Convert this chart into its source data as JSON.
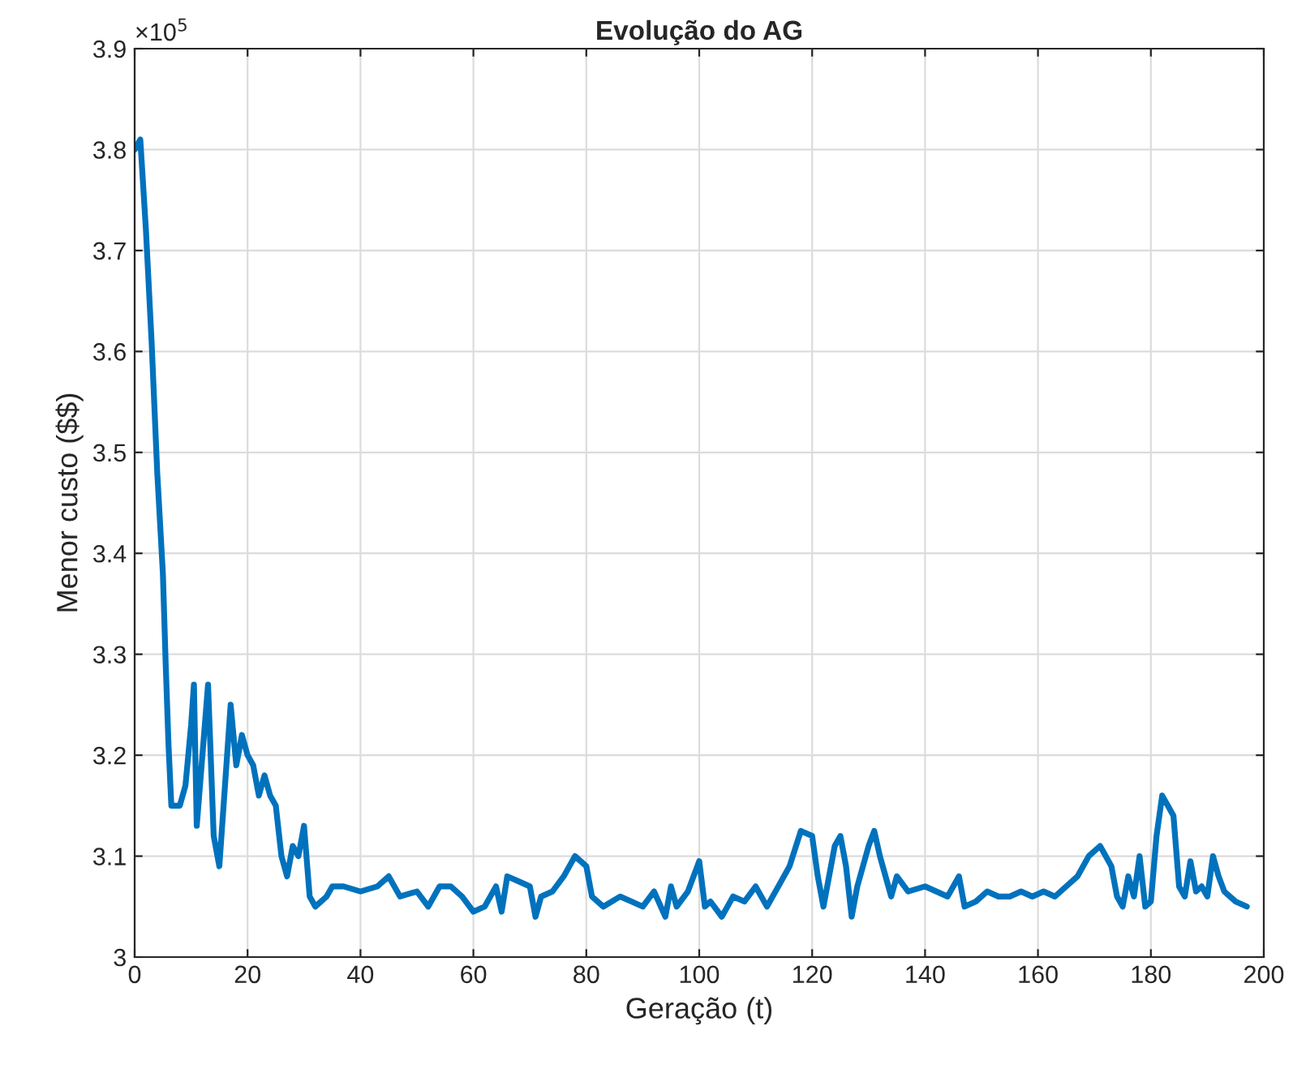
{
  "chart_data": {
    "type": "line",
    "title": "Evolução do AG",
    "xlabel": "Geração (t)",
    "ylabel": "Menor custo ($$)",
    "annotations": [
      "×10$^{5}$"
    ],
    "series": [
      {
        "color": "#0072bd",
        "x": [
          0,
          1,
          2,
          3,
          4,
          5,
          5.5,
          6,
          6.5,
          8,
          9,
          10,
          10.5,
          11,
          12,
          13,
          14,
          15,
          16,
          17,
          18,
          19,
          20,
          21,
          22,
          23,
          24,
          25,
          26,
          27,
          28,
          29,
          30,
          31,
          32,
          34,
          35,
          37,
          40,
          43,
          45,
          47,
          50,
          52,
          54,
          56,
          58,
          60,
          62,
          64,
          65,
          66,
          68,
          70,
          71,
          72,
          74,
          76,
          78,
          80,
          81,
          83,
          86,
          88,
          90,
          92,
          94,
          95,
          96,
          98,
          100,
          101,
          102,
          104,
          106,
          108,
          110,
          112,
          114,
          116,
          118,
          120,
          121,
          122,
          124,
          125,
          126,
          127,
          128,
          130,
          131,
          132,
          134,
          135,
          137,
          140,
          142,
          144,
          146,
          147,
          149,
          151,
          153,
          155,
          157,
          159,
          161,
          163,
          165,
          167,
          169,
          171,
          173,
          174,
          175,
          176,
          177,
          178,
          179,
          180,
          181,
          182,
          183,
          184,
          185,
          186,
          187,
          188,
          189,
          190,
          191,
          192,
          193,
          195,
          197
        ],
        "values": [
          3.8,
          3.81,
          3.72,
          3.61,
          3.48,
          3.38,
          3.29,
          3.21,
          3.15,
          3.15,
          3.17,
          3.23,
          3.27,
          3.13,
          3.2,
          3.27,
          3.12,
          3.09,
          3.17,
          3.25,
          3.19,
          3.22,
          3.2,
          3.19,
          3.16,
          3.18,
          3.16,
          3.15,
          3.1,
          3.08,
          3.11,
          3.1,
          3.13,
          3.06,
          3.05,
          3.06,
          3.07,
          3.07,
          3.065,
          3.07,
          3.08,
          3.06,
          3.065,
          3.05,
          3.07,
          3.07,
          3.06,
          3.045,
          3.05,
          3.07,
          3.045,
          3.08,
          3.075,
          3.07,
          3.04,
          3.06,
          3.065,
          3.08,
          3.1,
          3.09,
          3.06,
          3.05,
          3.06,
          3.055,
          3.05,
          3.065,
          3.04,
          3.07,
          3.05,
          3.065,
          3.095,
          3.05,
          3.055,
          3.04,
          3.06,
          3.055,
          3.07,
          3.05,
          3.07,
          3.09,
          3.125,
          3.12,
          3.08,
          3.05,
          3.11,
          3.12,
          3.09,
          3.04,
          3.07,
          3.11,
          3.125,
          3.1,
          3.06,
          3.08,
          3.065,
          3.07,
          3.065,
          3.06,
          3.08,
          3.05,
          3.055,
          3.065,
          3.06,
          3.06,
          3.065,
          3.06,
          3.065,
          3.06,
          3.07,
          3.08,
          3.1,
          3.11,
          3.09,
          3.06,
          3.05,
          3.08,
          3.06,
          3.1,
          3.05,
          3.055,
          3.12,
          3.16,
          3.15,
          3.14,
          3.07,
          3.06,
          3.095,
          3.065,
          3.07,
          3.06,
          3.1,
          3.08,
          3.065,
          3.055,
          3.05
        ]
      }
    ],
    "xlim": [
      0,
      200
    ],
    "xticks": [
      0,
      20,
      40,
      60,
      80,
      100,
      120,
      140,
      160,
      180,
      200
    ],
    "ylim": [
      3,
      3.9
    ],
    "yticks": [
      3,
      3.1,
      3.2,
      3.3,
      3.4,
      3.5,
      3.6,
      3.7,
      3.8,
      3.9
    ],
    "grid": true,
    "marker": "none",
    "line_style": "solid"
  }
}
